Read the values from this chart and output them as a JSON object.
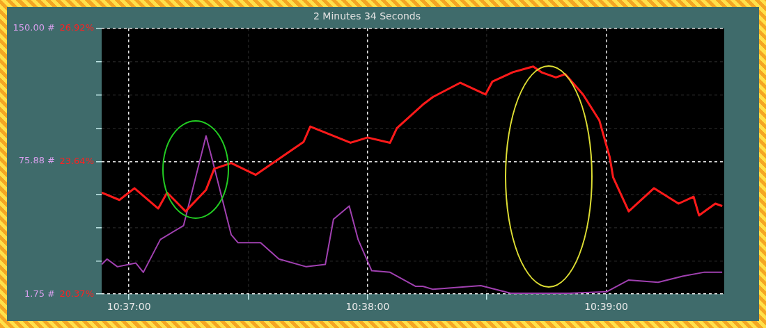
{
  "chart_data": {
    "type": "line",
    "title": "2 Minutes 34 Seconds",
    "xlim": [
      10.61476,
      10.65824
    ],
    "xticks": [
      {
        "value": 10.616667,
        "label": "10:37:00"
      },
      {
        "value": 10.625,
        "label": null
      },
      {
        "value": 10.633333,
        "label": "10:38:00"
      },
      {
        "value": 10.641667,
        "label": null
      },
      {
        "value": 10.65,
        "label": "10:39:00"
      }
    ],
    "ylim": [
      20.37,
      26.92
    ],
    "yticks": [
      {
        "value": 20.37,
        "label": "20.37%"
      },
      {
        "value": 21.19,
        "label": null
      },
      {
        "value": 22.01,
        "label": null
      },
      {
        "value": 22.83,
        "label": null
      },
      {
        "value": 23.64,
        "label": "23.64%"
      },
      {
        "value": 24.46,
        "label": null
      },
      {
        "value": 25.28,
        "label": null
      },
      {
        "value": 26.1,
        "label": null
      },
      {
        "value": 26.92,
        "label": "26.92%"
      }
    ],
    "y2lim": [
      1.75,
      150
    ],
    "y2ticks": [
      {
        "value": 1.75,
        "label": "1.75 #"
      },
      {
        "value": 75.88,
        "label": "75.88 #"
      },
      {
        "value": 150,
        "label": "150.00 #"
      }
    ],
    "grid": true,
    "legend": false,
    "marker": "none",
    "line_style": "solid",
    "series": [
      {
        "color": "#ff1a1a",
        "x": [
          10.61476,
          10.616,
          10.61705,
          10.61871,
          10.61933,
          10.62062,
          10.62205,
          10.62262,
          10.62381,
          10.62552,
          10.62886,
          10.62933,
          10.63214,
          10.63333,
          10.6349,
          10.63538,
          10.63719,
          10.6379,
          10.63981,
          10.64157,
          10.64205,
          10.64348,
          10.6449,
          10.64552,
          10.64648,
          10.64714,
          10.64838,
          10.64952,
          10.65024,
          10.65048,
          10.65157,
          10.65333,
          10.65505,
          10.6561,
          10.65648,
          10.65762,
          10.6581
        ],
        "values": [
          22.87,
          22.69,
          22.98,
          22.48,
          22.87,
          22.41,
          22.94,
          23.46,
          23.6,
          23.31,
          24.12,
          24.5,
          24.1,
          24.23,
          24.1,
          24.46,
          25.04,
          25.23,
          25.58,
          25.29,
          25.61,
          25.84,
          25.98,
          25.83,
          25.71,
          25.79,
          25.29,
          24.65,
          23.75,
          23.25,
          22.41,
          22.98,
          22.6,
          22.77,
          22.31,
          22.6,
          22.54
        ]
      },
      {
        "color": "#a040b0",
        "axis": "y2",
        "x": [
          10.61476,
          10.61514,
          10.61586,
          10.61714,
          10.61767,
          10.61886,
          10.62048,
          10.62205,
          10.62252,
          10.62381,
          10.62429,
          10.62586,
          10.62714,
          10.62905,
          10.63038,
          10.63095,
          10.63205,
          10.63267,
          10.63362,
          10.6349,
          10.63667,
          10.63719,
          10.6379,
          10.64124,
          10.64333,
          10.64743,
          10.65005,
          10.65157,
          10.65362,
          10.65538,
          10.65681,
          10.6581
        ],
        "values": [
          18.3,
          21.3,
          17,
          19.1,
          13.9,
          32.2,
          40,
          90,
          75.7,
          34.8,
          30.4,
          30.4,
          21.3,
          17,
          18.3,
          43.5,
          50.9,
          32.2,
          14.8,
          13.9,
          6.1,
          6.1,
          4.4,
          6.5,
          2.2,
          2.2,
          3.1,
          9.6,
          8.3,
          11.8,
          13.9,
          13.9
        ]
      }
    ]
  }
}
